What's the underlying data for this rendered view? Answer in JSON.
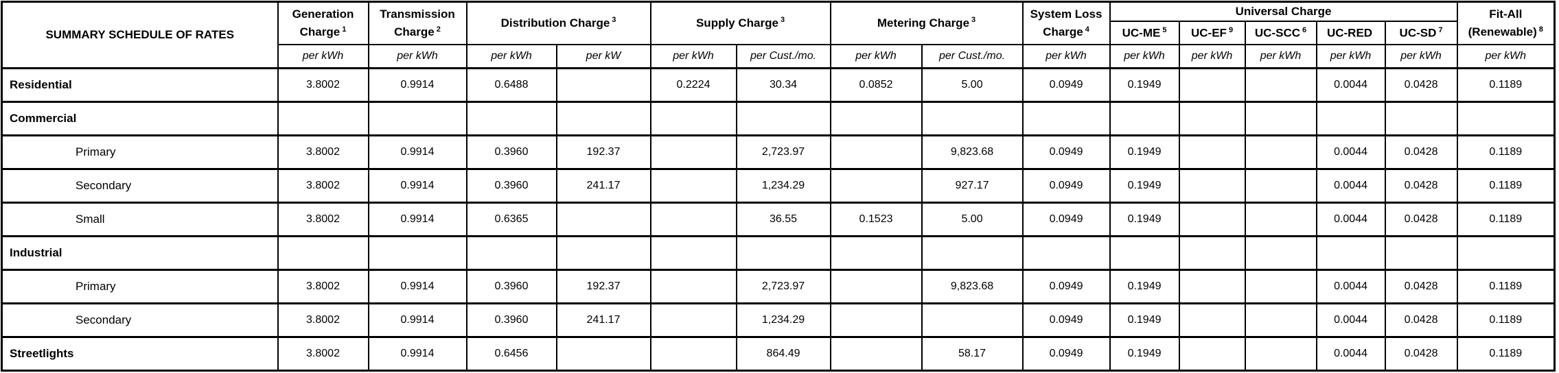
{
  "colors": {
    "background": "#ffffff",
    "grid_border": "#000000",
    "text": "#000000"
  },
  "table": {
    "title": "SUMMARY SCHEDULE OF RATES",
    "groups": [
      {
        "label": "Generation Charge",
        "sup": "1"
      },
      {
        "label": "Transmission Charge",
        "sup": "2"
      },
      {
        "label": "Distribution Charge",
        "sup": "3"
      },
      {
        "label": "Supply Charge",
        "sup": "3"
      },
      {
        "label": "Metering Charge",
        "sup": "3"
      },
      {
        "label": "System Loss Charge",
        "sup": "4"
      },
      {
        "label": "Universal Charge",
        "sup": ""
      },
      {
        "label": "Fit-All (Renewable)",
        "sup": "8"
      }
    ],
    "universal_subcols": [
      {
        "label": "UC-ME",
        "sup": "5"
      },
      {
        "label": "UC-EF",
        "sup": "9"
      },
      {
        "label": "UC-SCC",
        "sup": "6"
      },
      {
        "label": "UC-RED",
        "sup": ""
      },
      {
        "label": "UC-SD",
        "sup": "7"
      }
    ],
    "units": [
      "per kWh",
      "per kWh",
      "per kWh",
      "per kW",
      "per kWh",
      "per Cust./mo.",
      "per kWh",
      "per Cust./mo.",
      "per kWh",
      "per kWh",
      "per kWh",
      "per kWh",
      "per kWh",
      "per kWh",
      "per kWh"
    ],
    "rows": [
      {
        "label": "Residential",
        "bold": true,
        "cells": [
          "3.8002",
          "0.9914",
          "0.6488",
          "",
          "0.2224",
          "30.34",
          "0.0852",
          "5.00",
          "0.0949",
          "0.1949",
          "",
          "",
          "0.0044",
          "0.0428",
          "0.1189"
        ]
      },
      {
        "label": "Commercial",
        "bold": true,
        "cells": [
          "",
          "",
          "",
          "",
          "",
          "",
          "",
          "",
          "",
          "",
          "",
          "",
          "",
          "",
          ""
        ]
      },
      {
        "label": "Primary",
        "bold": false,
        "cells": [
          "3.8002",
          "0.9914",
          "0.3960",
          "192.37",
          "",
          "2,723.97",
          "",
          "9,823.68",
          "0.0949",
          "0.1949",
          "",
          "",
          "0.0044",
          "0.0428",
          "0.1189"
        ]
      },
      {
        "label": "Secondary",
        "bold": false,
        "cells": [
          "3.8002",
          "0.9914",
          "0.3960",
          "241.17",
          "",
          "1,234.29",
          "",
          "927.17",
          "0.0949",
          "0.1949",
          "",
          "",
          "0.0044",
          "0.0428",
          "0.1189"
        ]
      },
      {
        "label": "Small",
        "bold": false,
        "cells": [
          "3.8002",
          "0.9914",
          "0.6365",
          "",
          "",
          "36.55",
          "0.1523",
          "5.00",
          "0.0949",
          "0.1949",
          "",
          "",
          "0.0044",
          "0.0428",
          "0.1189"
        ]
      },
      {
        "label": "Industrial",
        "bold": true,
        "cells": [
          "",
          "",
          "",
          "",
          "",
          "",
          "",
          "",
          "",
          "",
          "",
          "",
          "",
          "",
          ""
        ]
      },
      {
        "label": "Primary",
        "bold": false,
        "cells": [
          "3.8002",
          "0.9914",
          "0.3960",
          "192.37",
          "",
          "2,723.97",
          "",
          "9,823.68",
          "0.0949",
          "0.1949",
          "",
          "",
          "0.0044",
          "0.0428",
          "0.1189"
        ]
      },
      {
        "label": "Secondary",
        "bold": false,
        "cells": [
          "3.8002",
          "0.9914",
          "0.3960",
          "241.17",
          "",
          "1,234.29",
          "",
          "",
          "0.0949",
          "0.1949",
          "",
          "",
          "0.0044",
          "0.0428",
          "0.1189"
        ]
      },
      {
        "label": "Streetlights",
        "bold": true,
        "cells": [
          "3.8002",
          "0.9914",
          "0.6456",
          "",
          "",
          "864.49",
          "",
          "58.17",
          "0.0949",
          "0.1949",
          "",
          "",
          "0.0044",
          "0.0428",
          "0.1189"
        ]
      }
    ]
  }
}
